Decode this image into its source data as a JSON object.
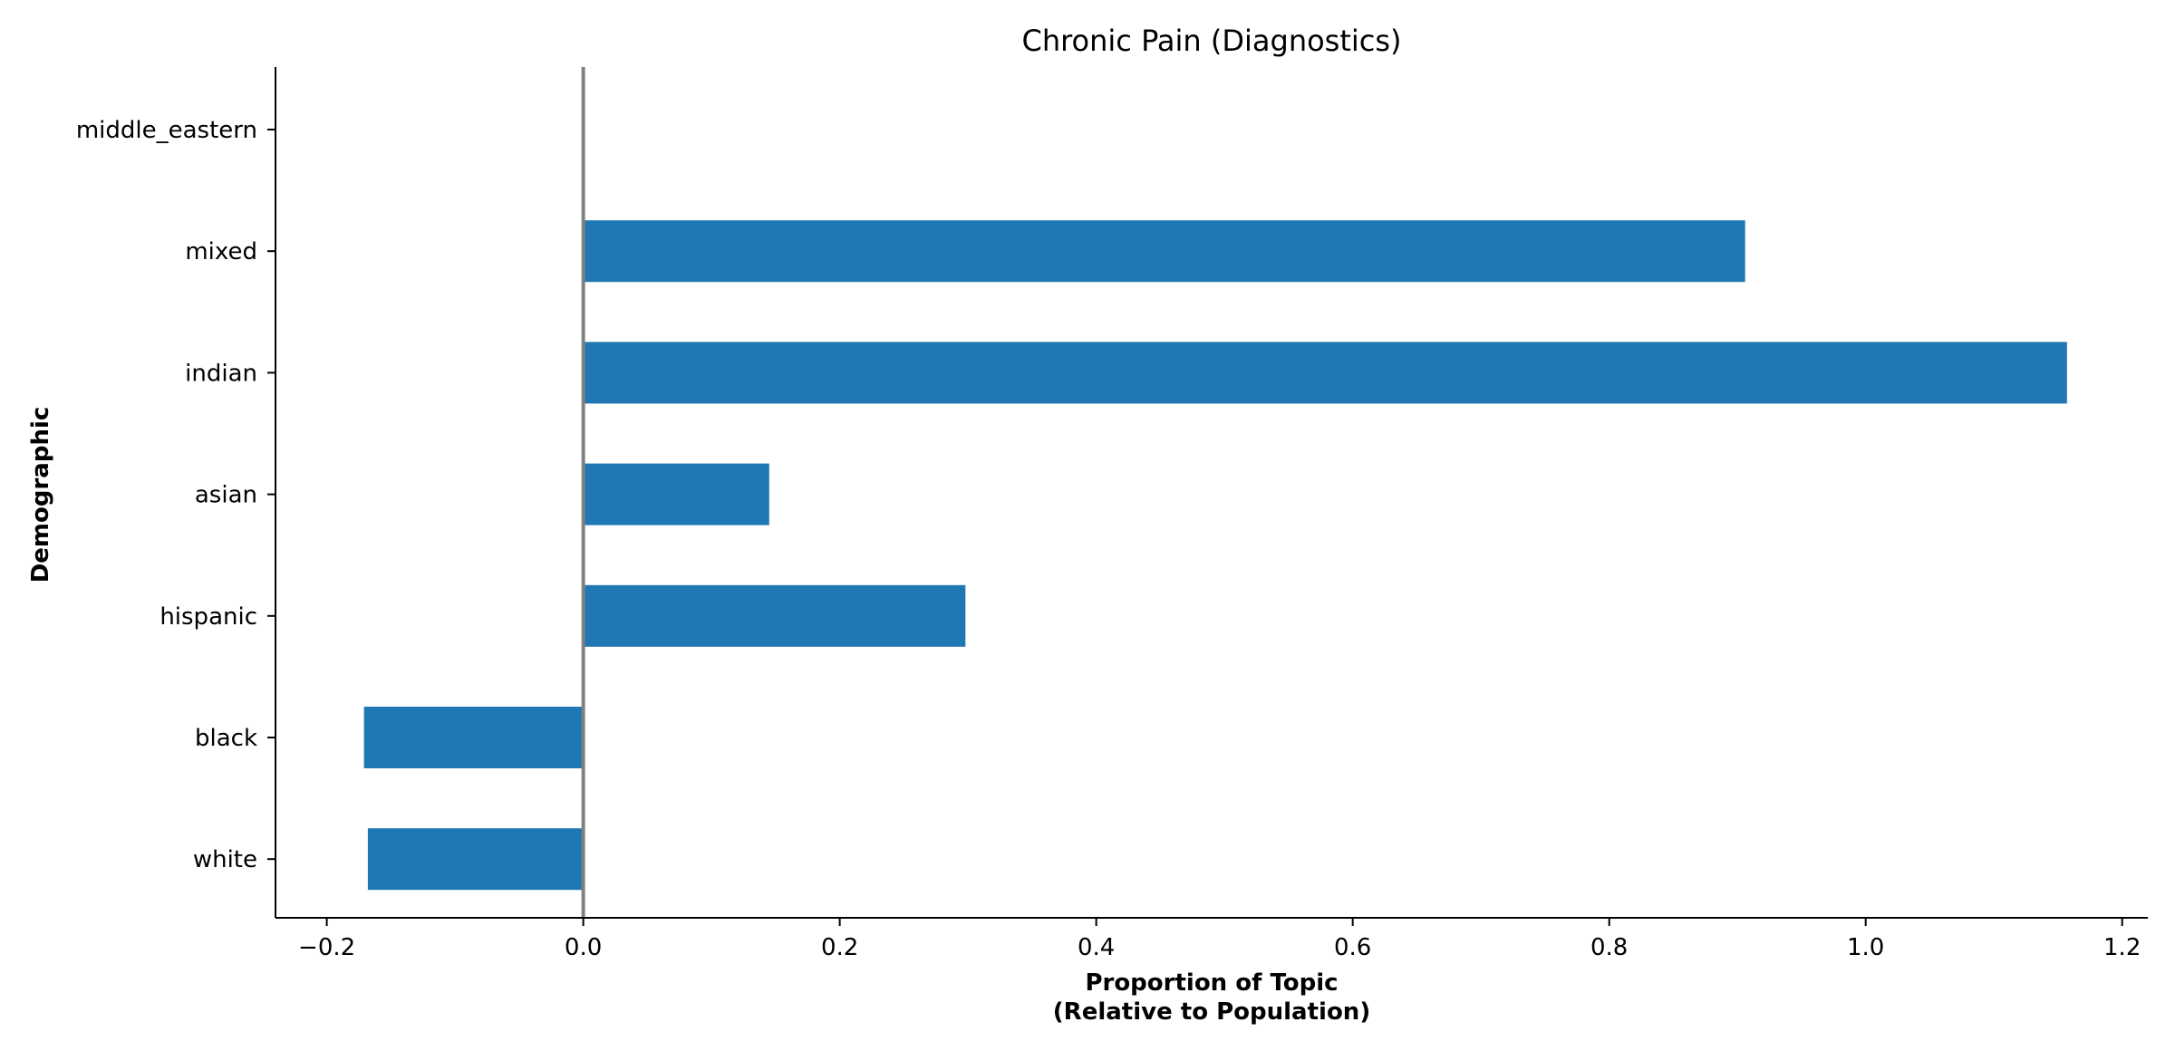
{
  "chart_data": {
    "type": "bar",
    "orientation": "horizontal",
    "title": "Chronic Pain (Diagnostics)",
    "xlabel_line1": "Proportion of Topic",
    "xlabel_line2": "(Relative to Population)",
    "ylabel": "Demographic",
    "categories": [
      "middle_eastern",
      "mixed",
      "indian",
      "asian",
      "hispanic",
      "black",
      "white"
    ],
    "values": [
      0.0,
      0.906,
      1.157,
      0.145,
      0.298,
      -0.171,
      -0.168
    ],
    "xlim": [
      -0.24,
      1.22
    ],
    "xticks": [
      -0.2,
      0.0,
      0.2,
      0.4,
      0.6,
      0.8,
      1.0,
      1.2
    ],
    "xtick_labels": [
      "−0.2",
      "0.0",
      "0.2",
      "0.4",
      "0.6",
      "0.8",
      "1.0",
      "1.2"
    ],
    "zero_line": true,
    "grid": false,
    "bar_color": "#1f77b4",
    "zero_line_color": "#808080"
  }
}
